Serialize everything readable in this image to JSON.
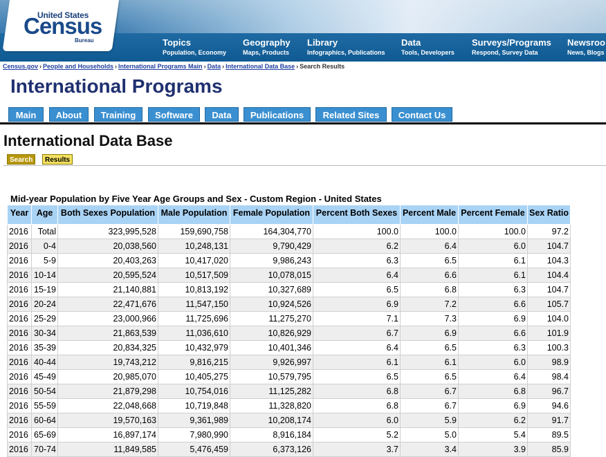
{
  "header": {
    "logo": {
      "line1": "United States",
      "line2": "Census",
      "line3": "Bureau"
    },
    "nav": [
      {
        "title": "Topics",
        "sub": "Population, Economy"
      },
      {
        "title": "Geography",
        "sub": "Maps, Products"
      },
      {
        "title": "Library",
        "sub": "Infographics, Publications"
      },
      {
        "title": "Data",
        "sub": "Tools, Developers"
      },
      {
        "title": "Surveys/Programs",
        "sub": "Respond, Survey Data"
      },
      {
        "title": "Newsroo",
        "sub": "News, Blogs"
      }
    ]
  },
  "breadcrumb": {
    "links": [
      "Census.gov",
      "People and Households",
      "International Programs Main",
      "Data",
      "International Data Base"
    ],
    "current": "Search Results",
    "separator": "›"
  },
  "site_title": "International Programs",
  "tabs": [
    "Main",
    "About",
    "Training",
    "Software",
    "Data",
    "Publications",
    "Related Sites",
    "Contact Us"
  ],
  "page_heading": "International Data Base",
  "subtabs": {
    "search": "Search",
    "results": "Results"
  },
  "table": {
    "caption": "Mid-year Population by Five Year Age Groups and Sex - Custom Region - United States",
    "columns": [
      "Year",
      "Age",
      "Both Sexes Population",
      "Male Population",
      "Female Population",
      "Percent Both Sexes",
      "Percent Male",
      "Percent Female",
      "Sex Ratio"
    ],
    "rows": [
      [
        "2016",
        "Total",
        "323,995,528",
        "159,690,758",
        "164,304,770",
        "100.0",
        "100.0",
        "100.0",
        "97.2"
      ],
      [
        "2016",
        "0-4",
        "20,038,560",
        "10,248,131",
        "9,790,429",
        "6.2",
        "6.4",
        "6.0",
        "104.7"
      ],
      [
        "2016",
        "5-9",
        "20,403,263",
        "10,417,020",
        "9,986,243",
        "6.3",
        "6.5",
        "6.1",
        "104.3"
      ],
      [
        "2016",
        "10-14",
        "20,595,524",
        "10,517,509",
        "10,078,015",
        "6.4",
        "6.6",
        "6.1",
        "104.4"
      ],
      [
        "2016",
        "15-19",
        "21,140,881",
        "10,813,192",
        "10,327,689",
        "6.5",
        "6.8",
        "6.3",
        "104.7"
      ],
      [
        "2016",
        "20-24",
        "22,471,676",
        "11,547,150",
        "10,924,526",
        "6.9",
        "7.2",
        "6.6",
        "105.7"
      ],
      [
        "2016",
        "25-29",
        "23,000,966",
        "11,725,696",
        "11,275,270",
        "7.1",
        "7.3",
        "6.9",
        "104.0"
      ],
      [
        "2016",
        "30-34",
        "21,863,539",
        "11,036,610",
        "10,826,929",
        "6.7",
        "6.9",
        "6.6",
        "101.9"
      ],
      [
        "2016",
        "35-39",
        "20,834,325",
        "10,432,979",
        "10,401,346",
        "6.4",
        "6.5",
        "6.3",
        "100.3"
      ],
      [
        "2016",
        "40-44",
        "19,743,212",
        "9,816,215",
        "9,926,997",
        "6.1",
        "6.1",
        "6.0",
        "98.9"
      ],
      [
        "2016",
        "45-49",
        "20,985,070",
        "10,405,275",
        "10,579,795",
        "6.5",
        "6.5",
        "6.4",
        "98.4"
      ],
      [
        "2016",
        "50-54",
        "21,879,298",
        "10,754,016",
        "11,125,282",
        "6.8",
        "6.7",
        "6.8",
        "96.7"
      ],
      [
        "2016",
        "55-59",
        "22,048,668",
        "10,719,848",
        "11,328,820",
        "6.8",
        "6.7",
        "6.9",
        "94.6"
      ],
      [
        "2016",
        "60-64",
        "19,570,163",
        "9,361,989",
        "10,208,174",
        "6.0",
        "5.9",
        "6.2",
        "91.7"
      ],
      [
        "2016",
        "65-69",
        "16,897,174",
        "7,980,990",
        "8,916,184",
        "5.2",
        "5.0",
        "5.4",
        "89.5"
      ],
      [
        "2016",
        "70-74",
        "11,849,585",
        "5,476,459",
        "6,373,126",
        "3.7",
        "3.4",
        "3.9",
        "85.9"
      ]
    ]
  },
  "colors": {
    "header_band": "#0f5a93",
    "tab_bg": "#3a8fd0",
    "table_header": "#a9d3f5",
    "title": "#1f3070",
    "search_tab": "#b8960b",
    "results_tab": "#f4e060"
  }
}
